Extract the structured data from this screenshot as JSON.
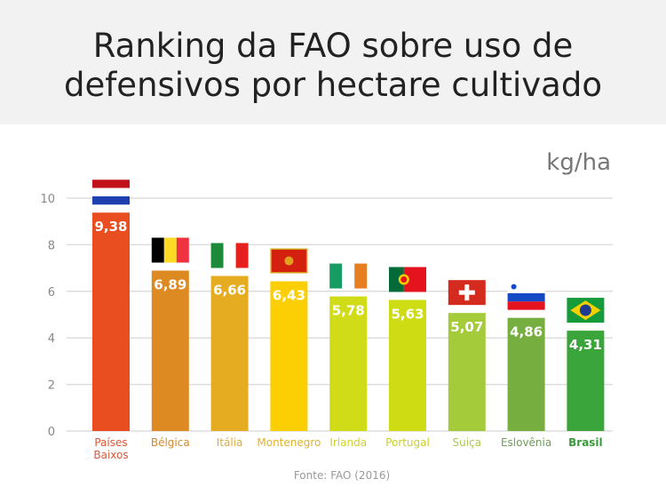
{
  "title": "Ranking da  FAO sobre uso de\ndefensivos por hectare cultivado",
  "source": "Fonte: FAO (2016)",
  "chart_data": {
    "type": "bar",
    "title": "Ranking da  FAO sobre uso de defensivos por hectare cultivado",
    "ylabel": "kg/ha",
    "ylim": [
      0,
      10
    ],
    "yticks": [
      0,
      2,
      4,
      6,
      8,
      10
    ],
    "grid": true,
    "categories": [
      "Países\nBaixos",
      "Bélgica",
      "Itália",
      "Montenegro",
      "Irlanda",
      "Portugal",
      "Suiça",
      "Eslovênia",
      "Brasil"
    ],
    "values": [
      9.38,
      6.89,
      6.66,
      6.43,
      5.78,
      5.63,
      5.07,
      4.86,
      4.31
    ],
    "value_labels": [
      "9,38",
      "6,89",
      "6,66",
      "6,43",
      "5,78",
      "5,63",
      "5,07",
      "4,86",
      "4,31"
    ],
    "flags": [
      "netherlands-flag",
      "belgium-flag",
      "italy-flag",
      "montenegro-flag",
      "ireland-flag",
      "portugal-flag",
      "switzerland-flag",
      "slovenia-flag",
      "brazil-flag"
    ],
    "colors": [
      "#e84e1f",
      "#de8a22",
      "#e5ac21",
      "#fccf05",
      "#d1dc18",
      "#cedc14",
      "#a4cc3a",
      "#76ae40",
      "#3aa53b"
    ],
    "label_colors": [
      "#d95a38",
      "#d6872a",
      "#e2ab3a",
      "#e0b22a",
      "#cfd12a",
      "#c8cf2a",
      "#a9c850",
      "#6f9c5a",
      "#3a9a3c"
    ],
    "highlight": "Brasil"
  }
}
